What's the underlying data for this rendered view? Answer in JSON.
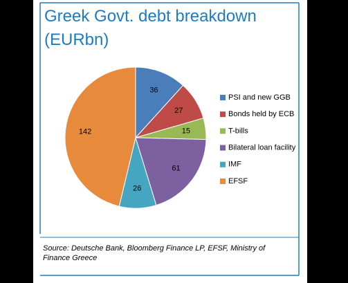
{
  "chart_data": {
    "type": "pie",
    "title": "Greek Govt. debt breakdown",
    "subtitle": "(EURbn)",
    "categories": [
      "PSI and new GGB",
      "Bonds held by ECB",
      "T-bills",
      "Bilateral loan facility",
      "IMF",
      "EFSF"
    ],
    "values": [
      36,
      27,
      15,
      61,
      26,
      142
    ],
    "colors": [
      "#4a7ebb",
      "#be4b48",
      "#98b954",
      "#7d60a0",
      "#46a5c0",
      "#e88a3c"
    ],
    "legend": "right",
    "source": "Source: Deutsche Bank, Bloomberg Finance LP, EFSF, Ministry of Finance Greece"
  }
}
